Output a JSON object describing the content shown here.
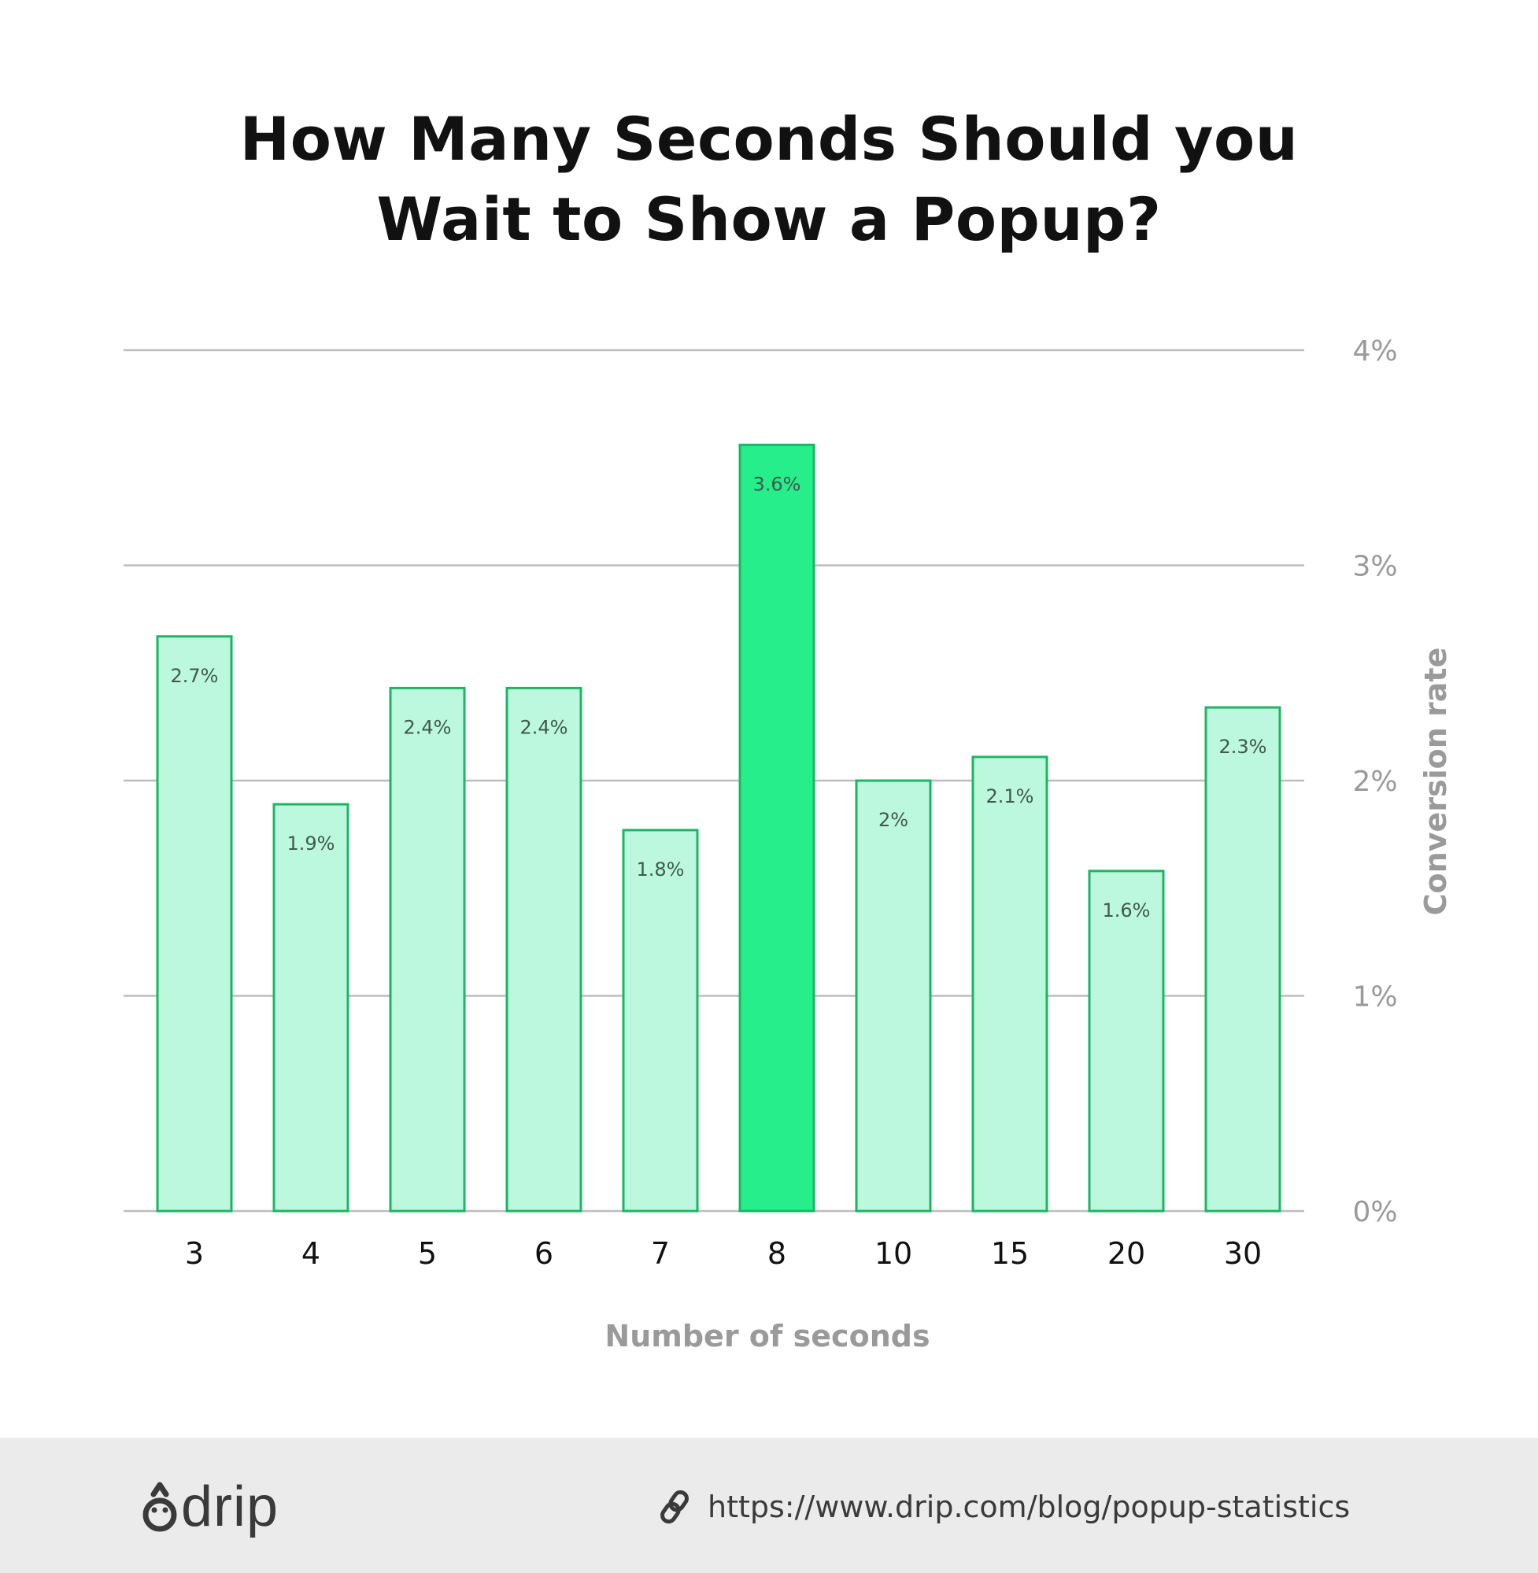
{
  "title_lines": [
    "How Many Seconds Should you",
    "Wait to Show a Popup?"
  ],
  "chart_data": {
    "type": "bar",
    "categories": [
      "3",
      "4",
      "5",
      "6",
      "7",
      "8",
      "10",
      "15",
      "20",
      "30"
    ],
    "values": [
      2.67,
      1.89,
      2.43,
      2.43,
      1.77,
      3.56,
      2.0,
      2.11,
      1.58,
      2.34
    ],
    "data_labels": [
      "2.7%",
      "1.9%",
      "2.4%",
      "2.4%",
      "1.8%",
      "3.6%",
      "2%",
      "2.1%",
      "1.6%",
      "2.3%"
    ],
    "highlight_index": 5,
    "xlabel": "Number of seconds",
    "ylabel": "Conversion rate",
    "ylim": [
      0,
      4
    ],
    "yticks": [
      0,
      1,
      2,
      3,
      4
    ],
    "ytick_labels": [
      "0%",
      "1%",
      "2%",
      "3%",
      "4%"
    ],
    "y_axis_side": "right",
    "grid": true,
    "colors": {
      "bar_fill": "#bbf8dd",
      "bar_stroke": "#1db565",
      "highlight_fill": "#26ee8b",
      "grid": "#bdbdbd",
      "tick_label": "#9a9a9a",
      "category_label": "#111111",
      "axis_title": "#9a9a9a",
      "data_label": "#3f5a4c"
    }
  },
  "footer": {
    "logo_icon": "drip-drop-icon",
    "logo_text": "drip",
    "link_icon": "link-icon",
    "url": "https://www.drip.com/blog/popup-statistics"
  }
}
